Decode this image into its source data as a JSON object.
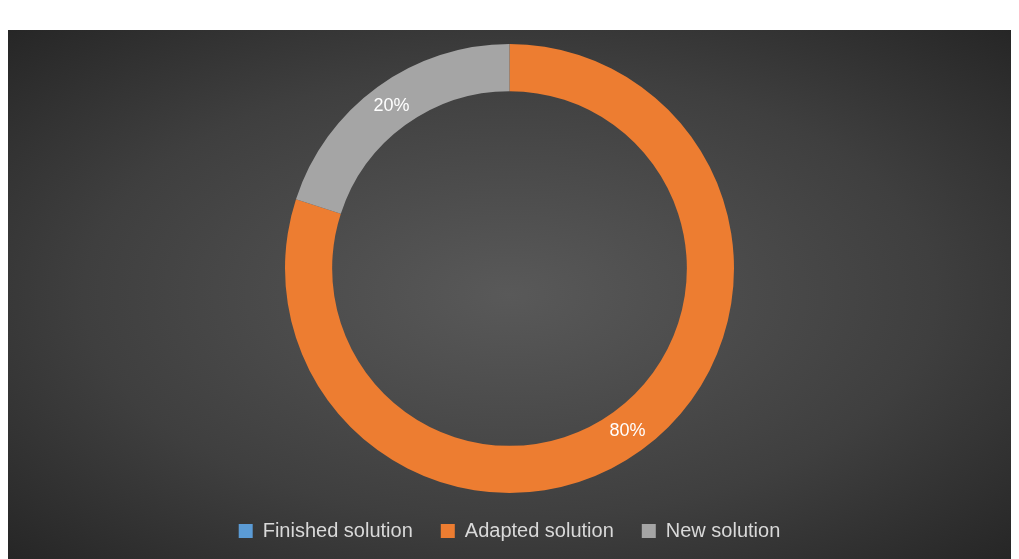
{
  "chart_data": {
    "type": "donut",
    "categories": [
      "Finished solution",
      "Adapted solution",
      "New solution"
    ],
    "values": [
      0,
      80,
      20
    ],
    "colors": [
      "#5b9bd5",
      "#ed7d31",
      "#a5a5a5"
    ],
    "value_labels": [
      null,
      "80%",
      "20%"
    ],
    "legend": "bottom"
  }
}
